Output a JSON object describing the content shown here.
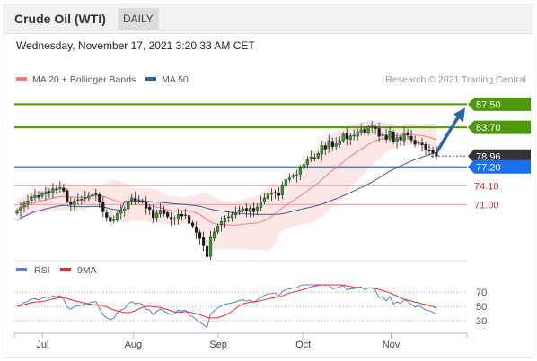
{
  "header": {
    "title": "Crude Oil (WTI)",
    "timeframe": "DAILY"
  },
  "datetime": "Wednesday, November 17, 2021 3:20:33 AM CET",
  "legend": {
    "ma20": "MA 20 + Bollinger Bands",
    "ma50": "MA 50",
    "credit": "Research © 2021 Trading Central",
    "rsi": "RSI",
    "rsi9": "9MA"
  },
  "colors": {
    "resistance": "#4c9a0c",
    "support_line": "#2f6fd6",
    "support_label": "#1b6ff2",
    "secondary": "#f0a0a8",
    "current": "#333333",
    "ma20": "#f08080",
    "ma50": "#3a5f98",
    "rsi": "#5b7fd4",
    "rsi9": "#e03030",
    "arrow": "#2c62a8"
  },
  "chart_data": {
    "type": "candlestick",
    "x_ticks": [
      {
        "date": "2021-07-01",
        "label": "Jul"
      },
      {
        "date": "2021-08-02",
        "label": "Aug"
      },
      {
        "date": "2021-09-01",
        "label": "Sep"
      },
      {
        "date": "2021-10-01",
        "label": "Oct"
      },
      {
        "date": "2021-11-01",
        "label": "Nov"
      }
    ],
    "price_axis": {
      "range": [
        62.5,
        90.5
      ]
    },
    "levels": [
      {
        "value": 87.5,
        "label": "87.50",
        "kind": "resistance"
      },
      {
        "value": 83.7,
        "label": "83.70",
        "kind": "resistance"
      },
      {
        "value": 78.96,
        "label": "78.96",
        "kind": "current"
      },
      {
        "value": 77.2,
        "label": "77.20",
        "kind": "pivot"
      },
      {
        "value": 74.1,
        "label": "74.10",
        "kind": "support"
      },
      {
        "value": 71.0,
        "label": "71.00",
        "kind": "support"
      }
    ],
    "target": 87.5,
    "closes": [
      70.0,
      70.5,
      71.2,
      71.6,
      72.3,
      72.5,
      72.2,
      72.8,
      73.1,
      73.0,
      73.6,
      73.4,
      73.8,
      73.2,
      71.5,
      71.0,
      71.6,
      71.8,
      71.9,
      72.2,
      72.4,
      72.6,
      72.7,
      71.4,
      69.8,
      68.9,
      68.2,
      68.5,
      69.5,
      70.1,
      70.3,
      71.5,
      72.1,
      71.6,
      71.8,
      71.5,
      70.4,
      70.2,
      68.8,
      69.6,
      70.1,
      69.5,
      69.0,
      68.5,
      68.7,
      69.4,
      69.1,
      69.3,
      67.9,
      67.5,
      66.4,
      65.4,
      64.2,
      62.4,
      65.6,
      66.5,
      67.5,
      68.2,
      68.8,
      69.0,
      69.3,
      69.6,
      70.1,
      70.3,
      70.0,
      70.4,
      69.8,
      70.6,
      71.4,
      72.1,
      72.7,
      72.8,
      73.0,
      72.5,
      74.2,
      75.1,
      75.4,
      75.8,
      75.9,
      77.1,
      77.6,
      78.4,
      78.8,
      78.6,
      79.4,
      80.7,
      80.1,
      81.5,
      80.5,
      81.0,
      81.5,
      82.6,
      81.8,
      82.3,
      82.4,
      82.9,
      83.3,
      82.8,
      83.8,
      83.9,
      83.5,
      82.2,
      82.5,
      81.7,
      83.1,
      81.3,
      82.0,
      81.6,
      82.8,
      82.4,
      81.6,
      80.9,
      81.2,
      80.8,
      80.1,
      79.9,
      79.4,
      78.96
    ],
    "rsi": {
      "levels": [
        70,
        50,
        30
      ]
    }
  }
}
